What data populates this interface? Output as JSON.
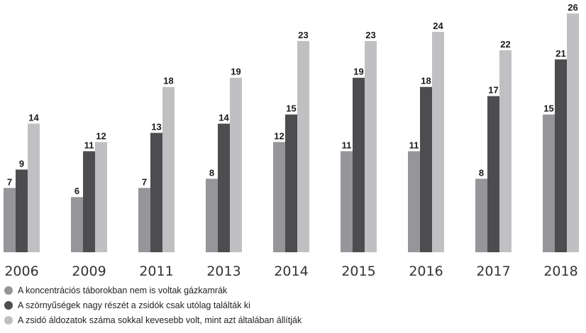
{
  "chart_data": {
    "type": "bar",
    "categories": [
      "2006",
      "2009",
      "2011",
      "2013",
      "2014",
      "2015",
      "2016",
      "2017",
      "2018"
    ],
    "series": [
      {
        "name": "A koncentrációs táborokban nem is voltak gázkamrák",
        "color": "#96969a",
        "values": [
          7,
          6,
          7,
          8,
          12,
          11,
          11,
          8,
          15
        ]
      },
      {
        "name": "A szörnyűségek nagy részét a zsidók csak utólag találták ki",
        "color": "#4d4d4f",
        "values": [
          9,
          11,
          13,
          14,
          15,
          19,
          18,
          17,
          21
        ]
      },
      {
        "name": "A zsidó áldozatok száma sokkal kevesebb volt, mint azt általában állítják",
        "color": "#c0c0c2",
        "values": [
          14,
          12,
          18,
          19,
          23,
          23,
          24,
          22,
          26
        ]
      }
    ],
    "title": "",
    "xlabel": "",
    "ylabel": "",
    "ylim": [
      0,
      26
    ],
    "data_labels": true,
    "grid": false,
    "legend_position": "bottom-left"
  }
}
